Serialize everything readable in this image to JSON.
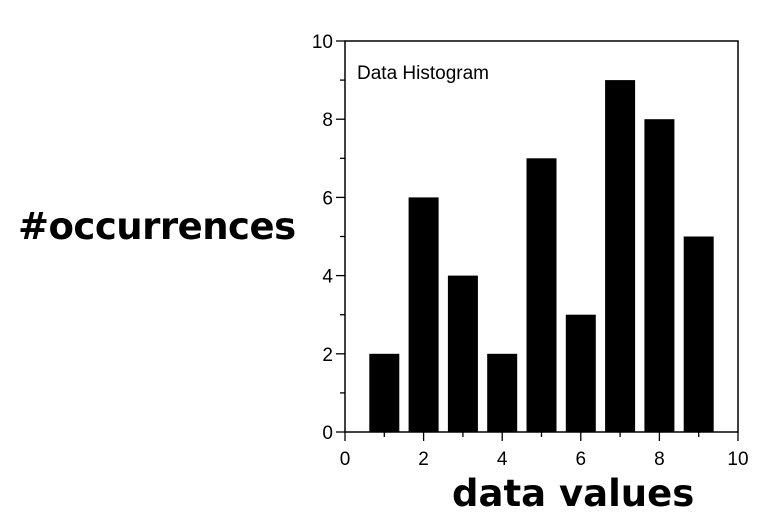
{
  "chart_data": {
    "type": "bar",
    "title": "Data Histogram",
    "xlabel": "data values",
    "ylabel": "#occurrences",
    "x": [
      1,
      2,
      3,
      4,
      5,
      6,
      7,
      8,
      9
    ],
    "values": [
      2,
      6,
      4,
      2,
      7,
      3,
      9,
      8,
      5
    ],
    "xlim": [
      0,
      10
    ],
    "ylim": [
      0,
      10
    ],
    "xticks": [
      0,
      2,
      4,
      6,
      8,
      10
    ],
    "yticks": [
      0,
      2,
      4,
      6,
      8,
      10
    ],
    "grid": false,
    "bar_color": "#000000"
  }
}
